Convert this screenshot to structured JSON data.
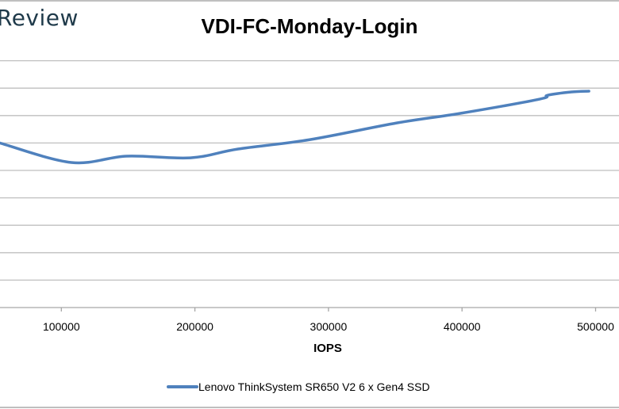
{
  "logo_text": "Review",
  "chart_data": {
    "type": "line",
    "title": "VDI-FC-Monday-Login",
    "xlabel": "IOPS",
    "ylabel": "",
    "x_ticks": [
      100000,
      200000,
      300000,
      400000,
      500000
    ],
    "x_tick_labels": [
      "100000",
      "200000",
      "300000",
      "400000",
      "500000"
    ],
    "y_gridlines": 9,
    "y_units_note": "y-axis labels not visible; y values in gridline units",
    "grid": true,
    "legend_position": "bottom",
    "series": [
      {
        "name": "Lenovo ThinkSystem SR650 V2 6 x Gen4 SSD",
        "color": "#4f81bd",
        "x": [
          54000,
          107500,
          149000,
          196700,
          232300,
          285800,
          351100,
          398700,
          458100,
          464000,
          482000,
          495000
        ],
        "y": [
          6.0,
          5.29,
          5.52,
          5.46,
          5.78,
          6.12,
          6.73,
          7.08,
          7.6,
          7.74,
          7.86,
          7.89
        ]
      }
    ]
  }
}
